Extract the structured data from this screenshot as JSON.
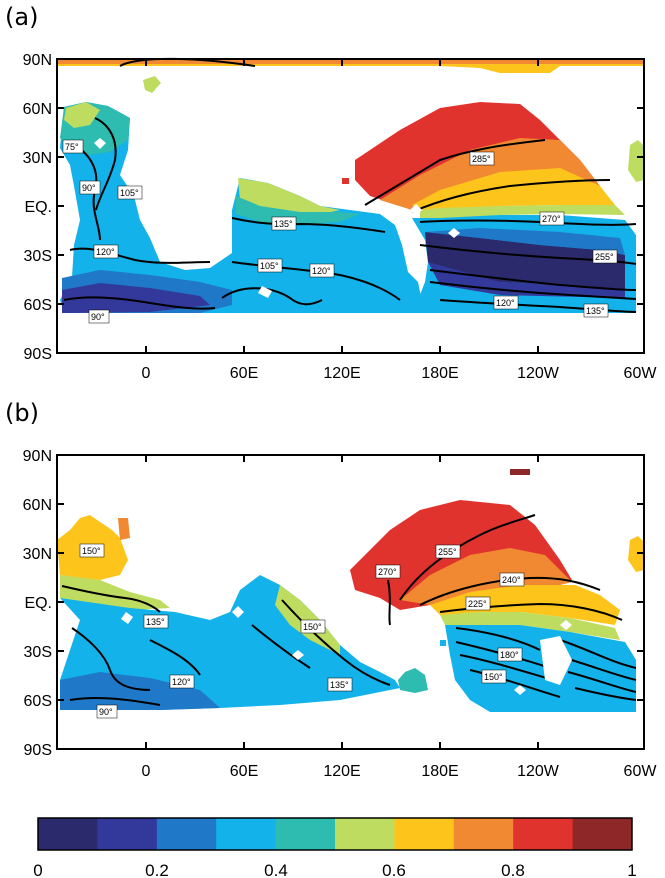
{
  "panels": [
    {
      "label": "(a)",
      "contour_labels": [
        "75°",
        "90°",
        "105°",
        "120°",
        "90°",
        "135°",
        "105°",
        "120°",
        "285°",
        "270°",
        "255°",
        "120°",
        "135°"
      ]
    },
    {
      "label": "(b)",
      "contour_labels": [
        "150°",
        "135°",
        "120°",
        "90°",
        "150°",
        "135°",
        "270°",
        "255°",
        "240°",
        "225°",
        "180°",
        "150°"
      ]
    }
  ],
  "axes": {
    "y_ticks": [
      "90N",
      "60N",
      "30N",
      "EQ.",
      "30S",
      "60S",
      "90S"
    ],
    "x_ticks": [
      "0",
      "60E",
      "120E",
      "180E",
      "120W",
      "60W"
    ]
  },
  "colorbar": {
    "ticks": [
      "0",
      "0.2",
      "0.4",
      "0.6",
      "0.8",
      "1"
    ],
    "colors": [
      "#2a2a6c",
      "#33399a",
      "#1f78c8",
      "#13b2ea",
      "#2dbcaf",
      "#bedd60",
      "#fdc51c",
      "#f18932",
      "#e1332e",
      "#8e2727"
    ]
  }
}
